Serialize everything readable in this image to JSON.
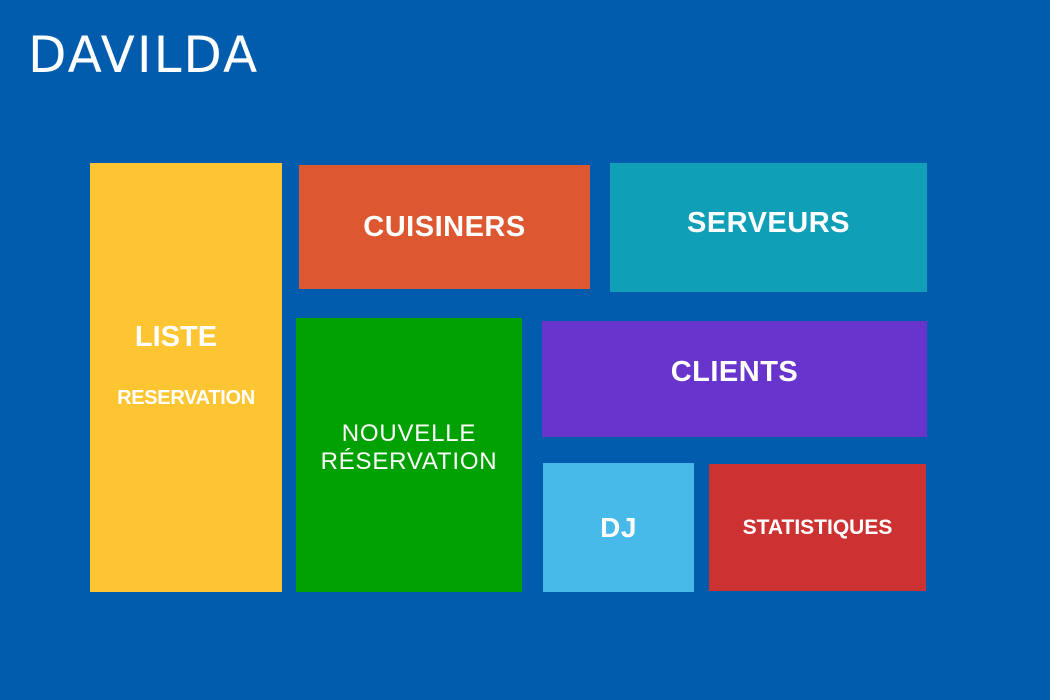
{
  "app": {
    "title": "DAVILDA",
    "background_color": "#025cae"
  },
  "tiles": {
    "liste_reservation": {
      "line1": "LISTE",
      "line2": "RESERVATION",
      "color": "#fcc531"
    },
    "cuisiniers": {
      "label": "CUISINERS",
      "color": "#dd5830"
    },
    "serveurs": {
      "label": "SERVEURS",
      "color": "#0fa0b8"
    },
    "nouvelle_reservation": {
      "label": "NOUVELLE RÉSERVATION",
      "color": "#02a102"
    },
    "clients": {
      "label": "CLIENTS",
      "color": "#6734cc"
    },
    "dj": {
      "label": "DJ",
      "color": "#47bae9"
    },
    "statistiques": {
      "label": "STATISTIQUES",
      "color": "#cc3232"
    }
  }
}
